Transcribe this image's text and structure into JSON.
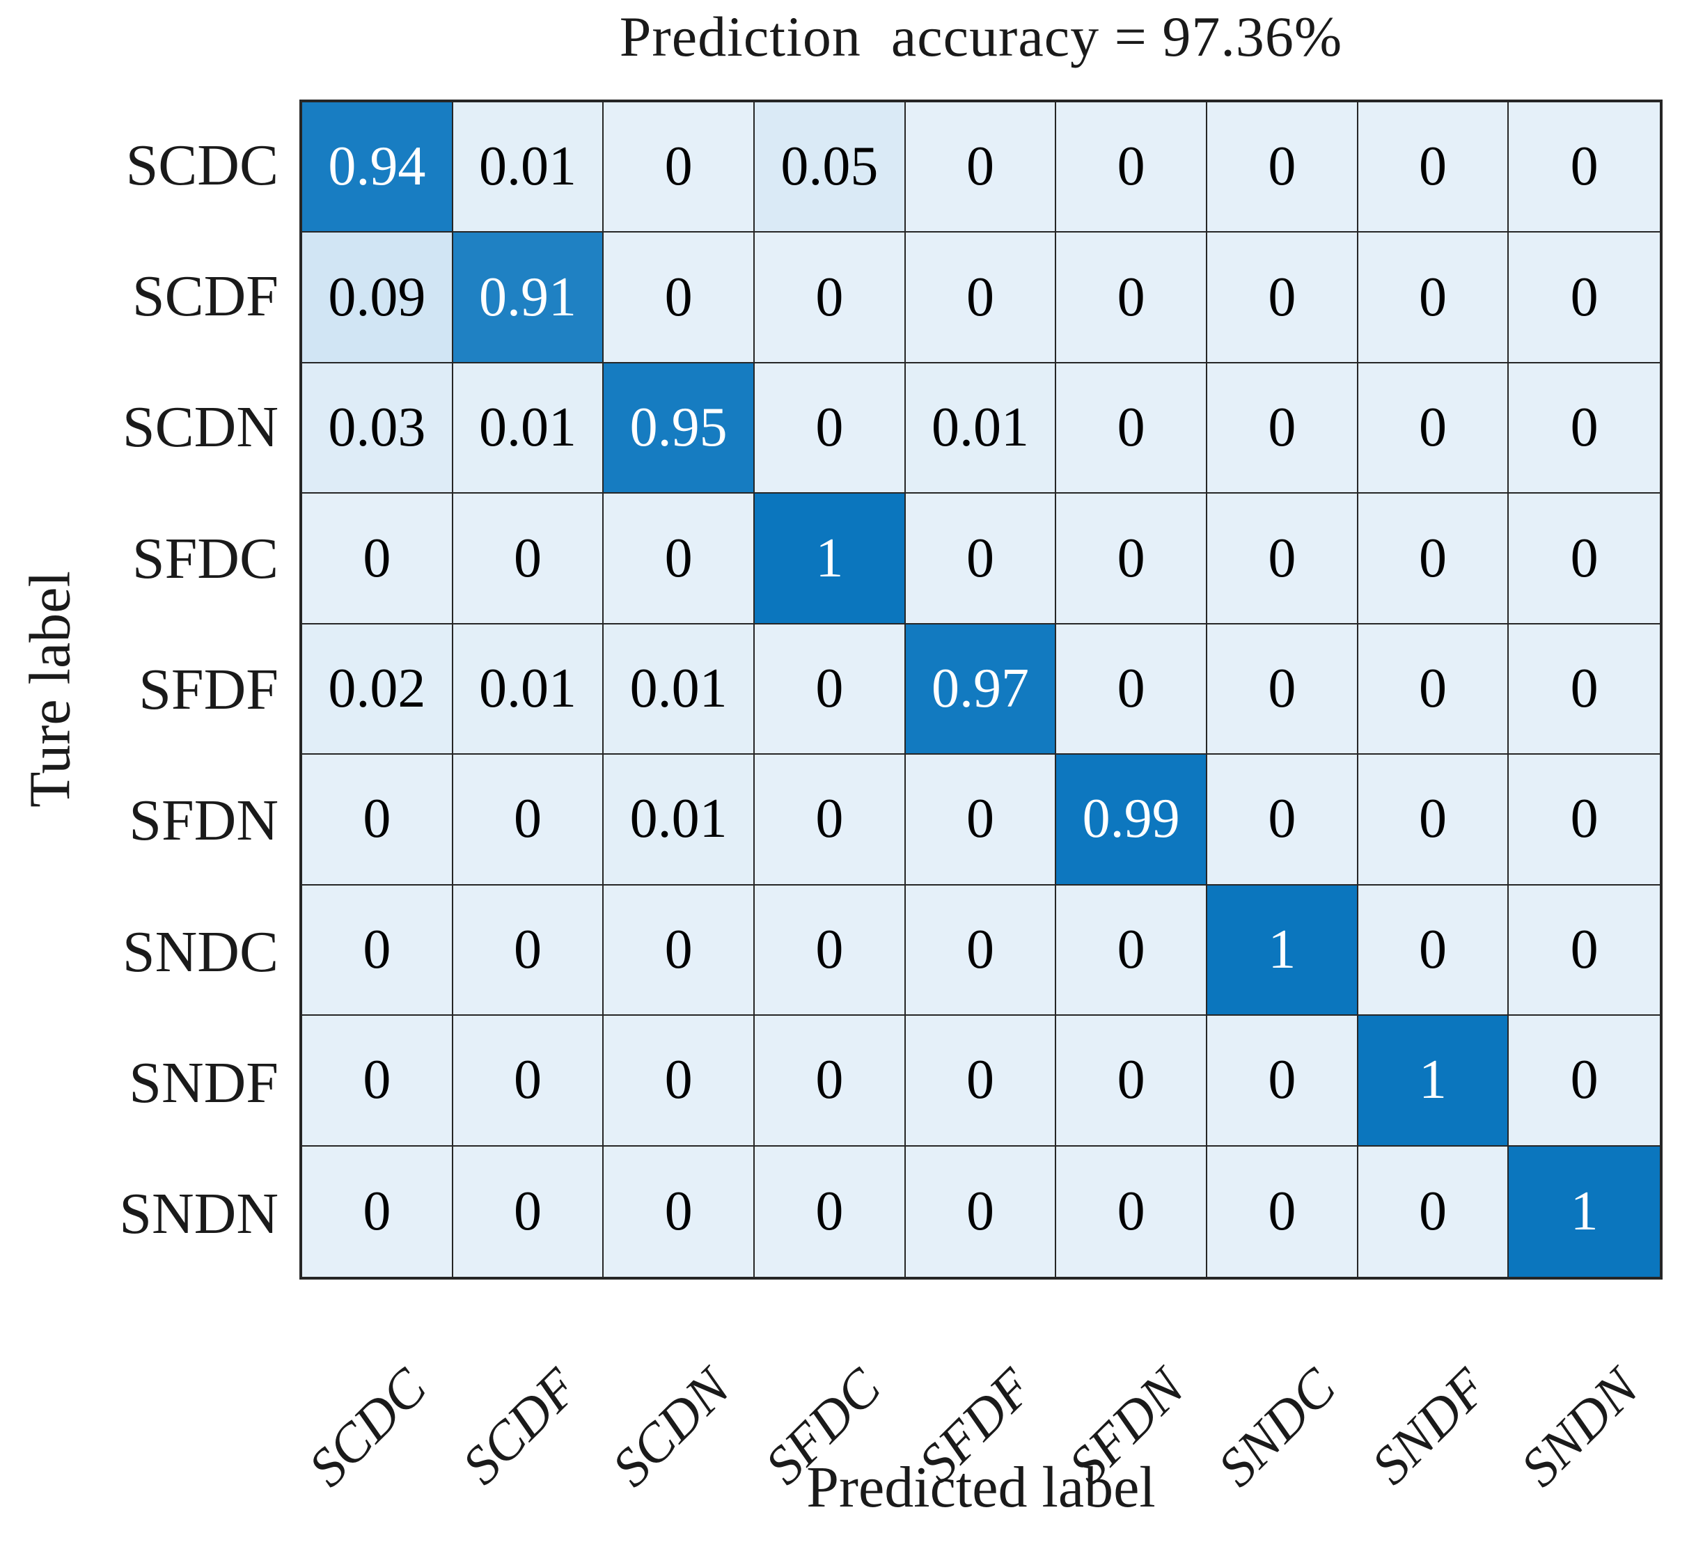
{
  "chart_data": {
    "type": "heatmap",
    "title": "Prediction  accuracy = 97.36%",
    "accuracy_percent": 97.36,
    "xlabel": "Predicted label",
    "ylabel": "Ture label",
    "categories": [
      "SCDC",
      "SCDF",
      "SCDN",
      "SFDC",
      "SFDF",
      "SFDN",
      "SNDC",
      "SNDF",
      "SNDN"
    ],
    "rows": [
      "SCDC",
      "SCDF",
      "SCDN",
      "SFDC",
      "SFDF",
      "SFDN",
      "SNDC",
      "SNDF",
      "SNDN"
    ],
    "matrix": [
      [
        0.94,
        0.01,
        0,
        0.05,
        0,
        0,
        0,
        0,
        0
      ],
      [
        0.09,
        0.91,
        0,
        0,
        0,
        0,
        0,
        0,
        0
      ],
      [
        0.03,
        0.01,
        0.95,
        0,
        0.01,
        0,
        0,
        0,
        0
      ],
      [
        0,
        0,
        0,
        1,
        0,
        0,
        0,
        0,
        0
      ],
      [
        0.02,
        0.01,
        0.01,
        0,
        0.97,
        0,
        0,
        0,
        0
      ],
      [
        0,
        0,
        0.01,
        0,
        0,
        0.99,
        0,
        0,
        0
      ],
      [
        0,
        0,
        0,
        0,
        0,
        0,
        1,
        0,
        0
      ],
      [
        0,
        0,
        0,
        0,
        0,
        0,
        0,
        1,
        0
      ],
      [
        0,
        0,
        0,
        0,
        0,
        0,
        0,
        0,
        1
      ]
    ],
    "value_range": [
      0,
      1
    ],
    "colors": {
      "low_cell": "#e5f0f9",
      "high_cell": "#0b76be",
      "grid_line": "#262626",
      "text_on_light": "#000000",
      "text_on_dark": "#ffffff"
    },
    "layout": {
      "grid_visible": true,
      "legend": "none",
      "x_tick_rotation_deg": 45
    }
  }
}
